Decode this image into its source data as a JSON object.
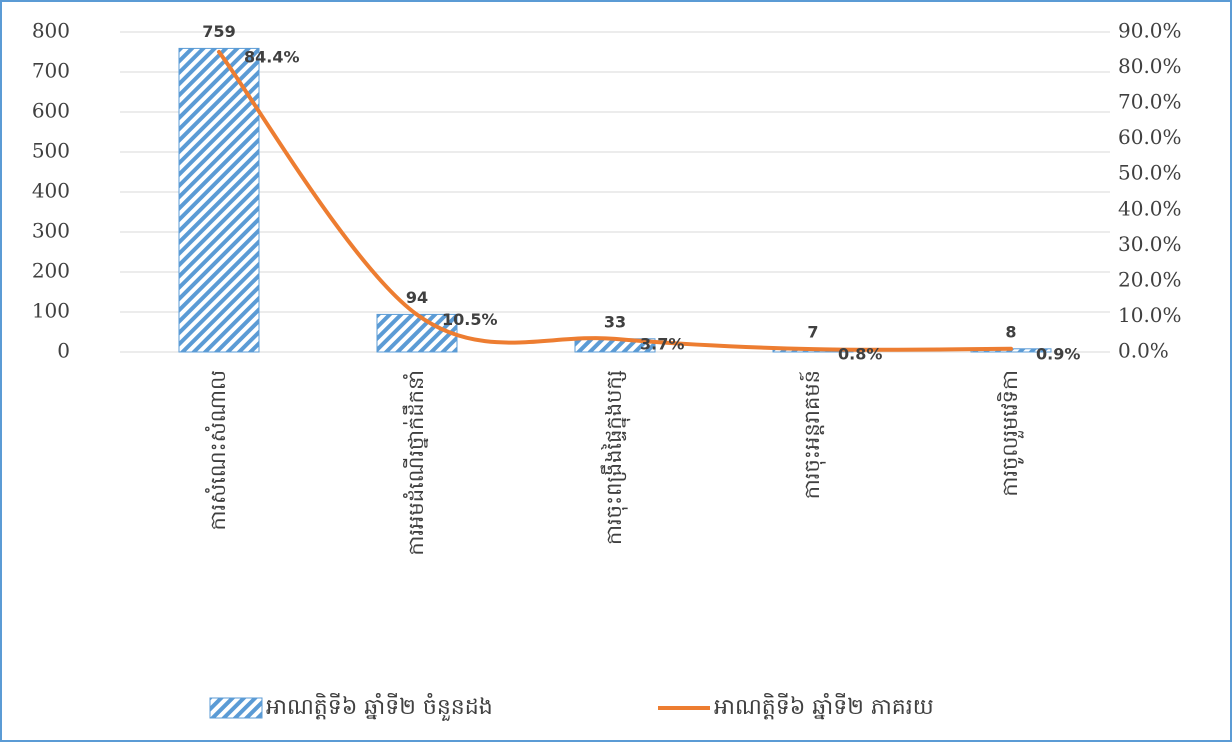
{
  "chart_data": {
    "type": "bar_line",
    "categories": [
      "ការសំណេះសំណាល",
      "ការអមដំណើរថ្នាក់ដឹកនាំ",
      "ការចុះពង្រឹងផ្ទៃក្នុងបក្ស",
      "ការចុះអន្តរាគមន៍",
      "ការចូលរួមវេទិកា"
    ],
    "series": [
      {
        "name": "អាណត្តិទី៦ ឆ្នាំទី២ ចំនួនដង",
        "type": "bar",
        "color": "#5b9bd5",
        "values": [
          759,
          94,
          33,
          7,
          8
        ]
      },
      {
        "name": "អាណត្តិទី៦ ឆ្នាំទី២ ភាគរយ",
        "type": "line",
        "axis": "y2",
        "color": "#ed7d31",
        "values": [
          84.4,
          10.5,
          3.7,
          0.8,
          0.9
        ],
        "value_labels": [
          "84.4%",
          "10.5%",
          "3.7%",
          "0.8%",
          "0.9%"
        ]
      }
    ],
    "ylim": [
      0,
      800
    ],
    "yticks": [
      0,
      100,
      200,
      300,
      400,
      500,
      600,
      700,
      800
    ],
    "y2lim": [
      0,
      90
    ],
    "y2ticks": [
      {
        "value": 0,
        "label": "0.0%"
      },
      {
        "value": 10,
        "label": "10.0%"
      },
      {
        "value": 20,
        "label": "20.0%"
      },
      {
        "value": 30,
        "label": "30.0%"
      },
      {
        "value": 40,
        "label": "40.0%"
      },
      {
        "value": 50,
        "label": "50.0%"
      },
      {
        "value": 60,
        "label": "60.0%"
      },
      {
        "value": 70,
        "label": "70.0%"
      },
      {
        "value": 80,
        "label": "80.0%"
      },
      {
        "value": 90,
        "label": "90.0%"
      }
    ],
    "grid": true,
    "legend": "bottom"
  }
}
